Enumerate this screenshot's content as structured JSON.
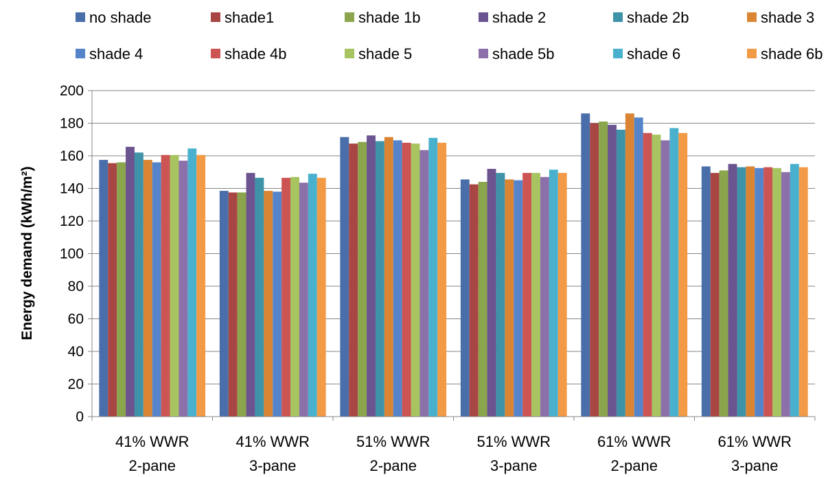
{
  "chart_data": {
    "type": "bar",
    "title": "",
    "xlabel": "",
    "ylabel": "Energy demand (kWh/m²)",
    "ylim": [
      0,
      200
    ],
    "yticks": [
      0,
      20,
      40,
      60,
      80,
      100,
      120,
      140,
      160,
      180,
      200
    ],
    "grid": true,
    "legend_position": "top",
    "categories": [
      [
        "41% WWR",
        "2-pane"
      ],
      [
        "41% WWR",
        "3-pane"
      ],
      [
        "51% WWR",
        "2-pane"
      ],
      [
        "51% WWR",
        "3-pane"
      ],
      [
        "61% WWR",
        "2-pane"
      ],
      [
        "61% WWR",
        "3-pane"
      ]
    ],
    "series": [
      {
        "name": "no shade",
        "color": "#4a6ea9",
        "values": [
          157.5,
          138.5,
          171.5,
          145.5,
          186,
          153.5
        ]
      },
      {
        "name": "shade1",
        "color": "#a84643",
        "values": [
          155.5,
          137.5,
          167.5,
          142.5,
          180,
          149.5
        ]
      },
      {
        "name": "shade 1b",
        "color": "#8aa54b",
        "values": [
          156,
          137.5,
          168.5,
          144,
          181,
          151
        ]
      },
      {
        "name": "shade 2",
        "color": "#6b5490",
        "values": [
          165.5,
          149.5,
          172.5,
          152,
          179,
          155
        ]
      },
      {
        "name": "shade 2b",
        "color": "#3e93a9",
        "values": [
          162,
          146.5,
          169,
          149.5,
          176,
          153
        ]
      },
      {
        "name": "shade 3",
        "color": "#d98534",
        "values": [
          157.5,
          138.5,
          171.5,
          145.5,
          186,
          153.5
        ]
      },
      {
        "name": "shade 4",
        "color": "#5584ca",
        "values": [
          156,
          138,
          169.5,
          145,
          183.5,
          152.5
        ]
      },
      {
        "name": "shade 4b",
        "color": "#cc5453",
        "values": [
          160.5,
          146.5,
          168,
          149.5,
          174,
          153
        ]
      },
      {
        "name": "shade 5",
        "color": "#a7c461",
        "values": [
          160.5,
          147,
          167.5,
          149.5,
          173,
          152.5
        ]
      },
      {
        "name": "shade 5b",
        "color": "#8b70aa",
        "values": [
          157,
          143.5,
          163.5,
          147,
          169.5,
          150
        ]
      },
      {
        "name": "shade 6",
        "color": "#49b1cd",
        "values": [
          164.5,
          149,
          171,
          151.5,
          177,
          155
        ]
      },
      {
        "name": "shade 6b",
        "color": "#f39a46",
        "values": [
          160.5,
          146.5,
          168,
          149.5,
          174,
          153
        ]
      }
    ]
  }
}
